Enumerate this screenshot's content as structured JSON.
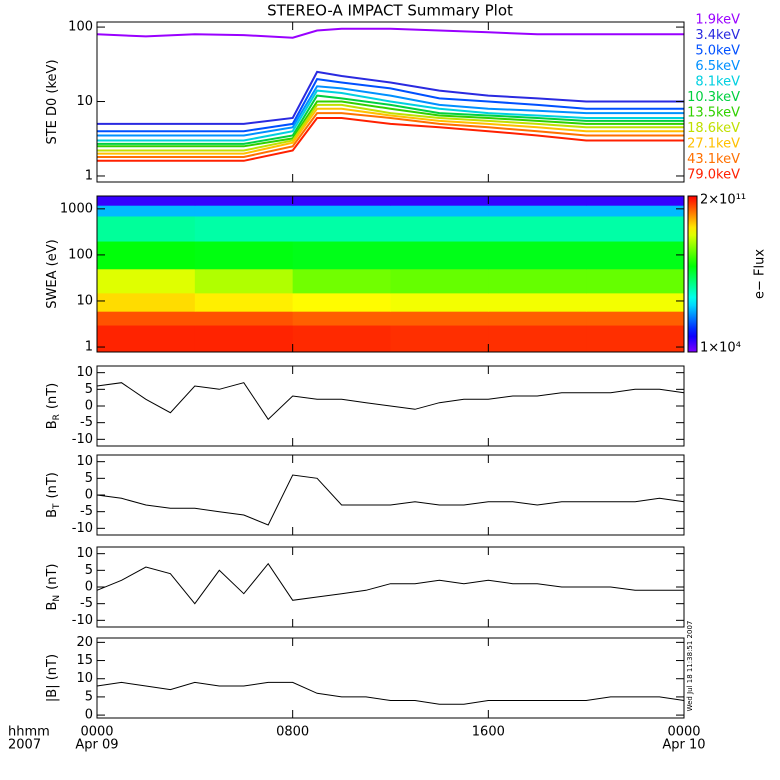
{
  "chart_data": [
    {
      "type": "line",
      "title": "STEREO-A IMPACT Summary Plot",
      "ylabel": "STE D0 (keV)",
      "log_y": true,
      "x": [
        0,
        2,
        4,
        6,
        8,
        9,
        10,
        12,
        14,
        16,
        18,
        20,
        22,
        24
      ],
      "xlim": [
        0,
        24
      ],
      "xticks": [
        0,
        8,
        16,
        24
      ],
      "ylim": [
        0.83,
        117
      ],
      "yticks": [
        1,
        10,
        100
      ],
      "series": [
        {
          "name": "1.9keV",
          "color": "#9900ff",
          "values": [
            80,
            75,
            80,
            78,
            72,
            90,
            95,
            95,
            90,
            85,
            80,
            80,
            80,
            80
          ]
        },
        {
          "name": "3.4keV",
          "color": "#2a2ae0",
          "values": [
            5,
            5,
            5,
            5,
            6,
            25,
            22,
            18,
            14,
            12,
            11,
            10,
            10,
            10
          ]
        },
        {
          "name": "5.0keV",
          "color": "#0050ff",
          "values": [
            4,
            4,
            4,
            4,
            5,
            20,
            18,
            15,
            11,
            10,
            9,
            8,
            8,
            8
          ]
        },
        {
          "name": "6.5keV",
          "color": "#0090ff",
          "values": [
            3.5,
            3.5,
            3.5,
            3.5,
            4.5,
            16,
            15,
            12,
            9,
            8,
            7.5,
            7,
            7,
            7
          ]
        },
        {
          "name": "8.1keV",
          "color": "#00d0e0",
          "values": [
            3,
            3,
            3,
            3,
            4,
            14,
            13,
            10,
            8,
            7,
            6.5,
            6,
            6,
            6
          ]
        },
        {
          "name": "10.3keV",
          "color": "#00d040",
          "values": [
            2.7,
            2.7,
            2.7,
            2.7,
            3.5,
            12,
            11,
            9,
            7,
            6.5,
            6,
            5.5,
            5.5,
            5.5
          ]
        },
        {
          "name": "13.5keV",
          "color": "#30d000",
          "values": [
            2.5,
            2.5,
            2.5,
            2.5,
            3.2,
            10,
            10,
            8,
            6.5,
            6,
            5.5,
            5,
            5,
            5
          ]
        },
        {
          "name": "18.6keV",
          "color": "#c0e000",
          "values": [
            2.2,
            2.2,
            2.2,
            2.2,
            3,
            9,
            9,
            7,
            6,
            5.5,
            5,
            4.5,
            4.5,
            4.5
          ]
        },
        {
          "name": "27.1keV",
          "color": "#ffc000",
          "values": [
            2,
            2,
            2,
            2,
            2.8,
            8,
            8,
            6.5,
            5.5,
            5,
            4.5,
            4,
            4,
            4
          ]
        },
        {
          "name": "43.1keV",
          "color": "#ff7000",
          "values": [
            1.8,
            1.8,
            1.8,
            1.8,
            2.5,
            7,
            7,
            6,
            5,
            4.5,
            4,
            3.5,
            3.5,
            3.5
          ]
        },
        {
          "name": "79.0keV",
          "color": "#ff2000",
          "values": [
            1.6,
            1.6,
            1.6,
            1.6,
            2.2,
            6,
            6,
            5,
            4.5,
            4,
            3.5,
            3,
            3,
            3
          ]
        }
      ]
    },
    {
      "type": "heatmap",
      "ylabel": "SWEA (eV)",
      "log_y": true,
      "log_z": true,
      "xbins": [
        0,
        4,
        8,
        12,
        16,
        20,
        24
      ],
      "ybins": [
        0.78,
        3,
        6,
        15,
        50,
        200,
        700,
        1200,
        1900
      ],
      "values": [
        [
          120000000000.0,
          120000000000.0,
          110000000000.0,
          100000000000.0,
          100000000000.0,
          100000000000.0
        ],
        [
          60000000000.0,
          60000000000.0,
          50000000000.0,
          50000000000.0,
          50000000000.0,
          50000000000.0
        ],
        [
          8000000000.0,
          6000000000.0,
          5000000000.0,
          4000000000.0,
          4000000000.0,
          4000000000.0
        ],
        [
          3000000000.0,
          1500000000.0,
          600000000.0,
          500000000.0,
          500000000.0,
          500000000.0
        ],
        [
          100000000.0,
          90000000.0,
          80000000.0,
          80000000.0,
          80000000.0,
          80000000.0
        ],
        [
          12000000.0,
          10000000.0,
          10000000.0,
          10000000.0,
          10000000.0,
          10000000.0
        ],
        [
          1000000.0,
          1000000.0,
          1000000.0,
          1000000.0,
          1000000.0,
          1000000.0
        ],
        [
          30000.0,
          30000.0,
          30000.0,
          30000.0,
          30000.0,
          30000.0
        ]
      ],
      "xlim": [
        0,
        24
      ],
      "xticks": [
        0,
        8,
        16,
        24
      ],
      "ylim": [
        0.78,
        1900
      ],
      "yticks": [
        1,
        10,
        100,
        1000
      ],
      "zlim": [
        10000.0,
        200000000000.0
      ],
      "zticks": [
        {
          "value": 200000000000.0,
          "label": "2×10¹¹"
        },
        {
          "value": 10000.0,
          "label": "1×10⁴"
        }
      ],
      "zlabel": "e− Flux"
    },
    {
      "type": "line",
      "ylabel": "B",
      "ylabel_sub": "R",
      "ylabel_unit": "(nT)",
      "color": "#000000",
      "x": [
        0,
        1,
        2,
        3,
        4,
        5,
        6,
        7,
        8,
        9,
        10,
        11,
        12,
        13,
        14,
        15,
        16,
        17,
        18,
        19,
        20,
        21,
        22,
        23,
        24
      ],
      "values": [
        6,
        7,
        2,
        -2,
        6,
        5,
        7,
        -4,
        3,
        2,
        2,
        1,
        0,
        -1,
        1,
        2,
        2,
        3,
        3,
        4,
        4,
        4,
        5,
        5,
        4
      ],
      "xlim": [
        0,
        24
      ],
      "xticks": [
        0,
        8,
        16,
        24
      ],
      "ylim": [
        -12,
        12
      ],
      "yticks": [
        -10,
        -5,
        0,
        5,
        10
      ]
    },
    {
      "type": "line",
      "ylabel": "B",
      "ylabel_sub": "T",
      "ylabel_unit": "(nT)",
      "color": "#000000",
      "x": [
        0,
        1,
        2,
        3,
        4,
        5,
        6,
        7,
        8,
        9,
        10,
        11,
        12,
        13,
        14,
        15,
        16,
        17,
        18,
        19,
        20,
        21,
        22,
        23,
        24
      ],
      "values": [
        0,
        -1,
        -3,
        -4,
        -4,
        -5,
        -6,
        -9,
        6,
        5,
        -3,
        -3,
        -3,
        -2,
        -3,
        -3,
        -2,
        -2,
        -3,
        -2,
        -2,
        -2,
        -2,
        -1,
        -2
      ],
      "xlim": [
        0,
        24
      ],
      "xticks": [
        0,
        8,
        16,
        24
      ],
      "ylim": [
        -12,
        12
      ],
      "yticks": [
        -10,
        -5,
        0,
        5,
        10
      ]
    },
    {
      "type": "line",
      "ylabel": "B",
      "ylabel_sub": "N",
      "ylabel_unit": "(nT)",
      "color": "#000000",
      "x": [
        0,
        1,
        2,
        3,
        4,
        5,
        6,
        7,
        8,
        9,
        10,
        11,
        12,
        13,
        14,
        15,
        16,
        17,
        18,
        19,
        20,
        21,
        22,
        23,
        24
      ],
      "values": [
        -1,
        2,
        6,
        4,
        -5,
        5,
        -2,
        7,
        -4,
        -3,
        -2,
        -1,
        1,
        1,
        2,
        1,
        2,
        1,
        1,
        0,
        0,
        0,
        -1,
        -1,
        -1
      ],
      "xlim": [
        0,
        24
      ],
      "xticks": [
        0,
        8,
        16,
        24
      ],
      "ylim": [
        -12,
        12
      ],
      "yticks": [
        -10,
        -5,
        0,
        5,
        10
      ]
    },
    {
      "type": "line",
      "ylabel": "|B| (nT)",
      "color": "#000000",
      "x": [
        0,
        1,
        2,
        3,
        4,
        5,
        6,
        7,
        8,
        9,
        10,
        11,
        12,
        13,
        14,
        15,
        16,
        17,
        18,
        19,
        20,
        21,
        22,
        23,
        24
      ],
      "values": [
        8,
        9,
        8,
        7,
        9,
        8,
        8,
        9,
        9,
        6,
        5,
        5,
        4,
        4,
        3,
        3,
        4,
        4,
        4,
        4,
        4,
        5,
        5,
        5,
        4
      ],
      "xlim": [
        0,
        24
      ],
      "xticks": [
        {
          "value": 0,
          "label": "0000"
        },
        {
          "value": 8,
          "label": "0800"
        },
        {
          "value": 16,
          "label": "1600"
        },
        {
          "value": 24,
          "label": "0000"
        }
      ],
      "date_labels": [
        {
          "value": 0,
          "label": "Apr 09"
        },
        {
          "value": 24,
          "label": "Apr 10"
        }
      ],
      "xlabel": "hhmm",
      "year": "2007",
      "annotation": "Wed Jul 18 11:38:51 2007",
      "ylim": [
        -0.8,
        21.2
      ],
      "yticks": [
        0,
        5,
        10,
        15,
        20
      ]
    }
  ]
}
